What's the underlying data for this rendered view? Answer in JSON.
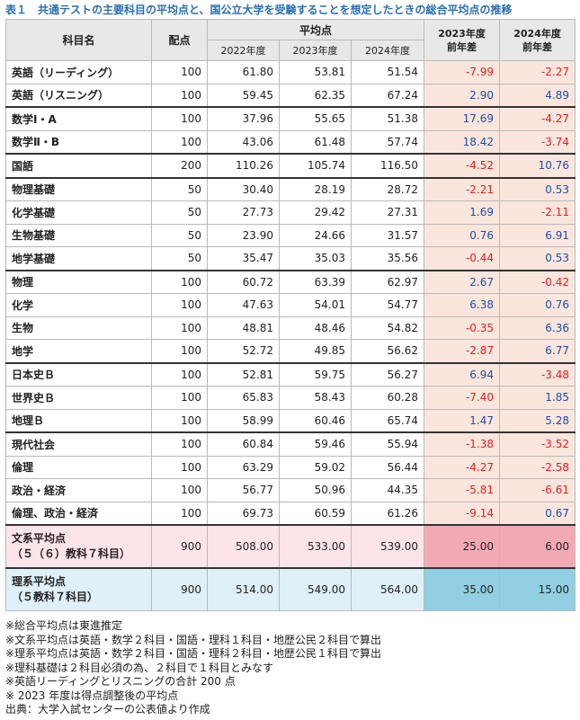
{
  "title": "表１　共通テストの主要科目の平均点と、国公立大学を受験することを想定したときの総合平均点の推移",
  "headers": {
    "subject": "科目名",
    "points": "配点",
    "avg": "平均点",
    "y2022": "2022年度",
    "y2023": "2023年度",
    "y2024": "2024年度",
    "d2023": "2023年度\n前年差",
    "d2024": "2024年度\n前年差"
  },
  "rows": [
    {
      "name": "英語（リーディング）",
      "points": "100",
      "v2022": "61.80",
      "v2023": "53.81",
      "v2024": "51.54",
      "d2023": "-7.99",
      "d2024": "-2.27"
    },
    {
      "name": "英語（リスニング）",
      "points": "100",
      "v2022": "59.45",
      "v2023": "62.35",
      "v2024": "67.24",
      "d2023": "2.90",
      "d2024": "4.89"
    },
    {
      "name": "数学Ⅰ・A",
      "points": "100",
      "v2022": "37.96",
      "v2023": "55.65",
      "v2024": "51.38",
      "d2023": "17.69",
      "d2024": "-4.27"
    },
    {
      "name": "数学Ⅱ・B",
      "points": "100",
      "v2022": "43.06",
      "v2023": "61.48",
      "v2024": "57.74",
      "d2023": "18.42",
      "d2024": "-3.74"
    },
    {
      "name": "国語",
      "points": "200",
      "v2022": "110.26",
      "v2023": "105.74",
      "v2024": "116.50",
      "d2023": "-4.52",
      "d2024": "10.76"
    },
    {
      "name": "物理基礎",
      "points": "50",
      "v2022": "30.40",
      "v2023": "28.19",
      "v2024": "28.72",
      "d2023": "-2.21",
      "d2024": "0.53"
    },
    {
      "name": "化学基礎",
      "points": "50",
      "v2022": "27.73",
      "v2023": "29.42",
      "v2024": "27.31",
      "d2023": "1.69",
      "d2024": "-2.11"
    },
    {
      "name": "生物基礎",
      "points": "50",
      "v2022": "23.90",
      "v2023": "24.66",
      "v2024": "31.57",
      "d2023": "0.76",
      "d2024": "6.91"
    },
    {
      "name": "地学基礎",
      "points": "50",
      "v2022": "35.47",
      "v2023": "35.03",
      "v2024": "35.56",
      "d2023": "-0.44",
      "d2024": "0.53"
    },
    {
      "name": "物理",
      "points": "100",
      "v2022": "60.72",
      "v2023": "63.39",
      "v2024": "62.97",
      "d2023": "2.67",
      "d2024": "-0.42"
    },
    {
      "name": "化学",
      "points": "100",
      "v2022": "47.63",
      "v2023": "54.01",
      "v2024": "54.77",
      "d2023": "6.38",
      "d2024": "0.76"
    },
    {
      "name": "生物",
      "points": "100",
      "v2022": "48.81",
      "v2023": "48.46",
      "v2024": "54.82",
      "d2023": "-0.35",
      "d2024": "6.36"
    },
    {
      "name": "地学",
      "points": "100",
      "v2022": "52.72",
      "v2023": "49.85",
      "v2024": "56.62",
      "d2023": "-2.87",
      "d2024": "6.77"
    },
    {
      "name": "日本史Ｂ",
      "points": "100",
      "v2022": "52.81",
      "v2023": "59.75",
      "v2024": "56.27",
      "d2023": "6.94",
      "d2024": "-3.48"
    },
    {
      "name": "世界史Ｂ",
      "points": "100",
      "v2022": "65.83",
      "v2023": "58.43",
      "v2024": "60.28",
      "d2023": "-7.40",
      "d2024": "1.85"
    },
    {
      "name": "地理Ｂ",
      "points": "100",
      "v2022": "58.99",
      "v2023": "60.46",
      "v2024": "65.74",
      "d2023": "1.47",
      "d2024": "5.28"
    },
    {
      "name": "現代社会",
      "points": "100",
      "v2022": "60.84",
      "v2023": "59.46",
      "v2024": "55.94",
      "d2023": "-1.38",
      "d2024": "-3.52"
    },
    {
      "name": "倫理",
      "points": "100",
      "v2022": "63.29",
      "v2023": "59.02",
      "v2024": "56.44",
      "d2023": "-4.27",
      "d2024": "-2.58"
    },
    {
      "name": "政治・経済",
      "points": "100",
      "v2022": "56.77",
      "v2023": "50.96",
      "v2024": "44.35",
      "d2023": "-5.81",
      "d2024": "-6.61"
    },
    {
      "name": "倫理、政治・経済",
      "points": "100",
      "v2022": "69.73",
      "v2023": "60.59",
      "v2024": "61.26",
      "d2023": "-9.14",
      "d2024": "0.67"
    }
  ],
  "bunkei": {
    "name1": "文系平均点",
    "name2": "（５（６）教科７科目）",
    "points": "900",
    "v2022": "508.00",
    "v2023": "533.00",
    "v2024": "539.00",
    "d2023": "25.00",
    "d2024": "6.00"
  },
  "rikei": {
    "name1": "理系平均点",
    "name2": "（５教科７科目）",
    "points": "900",
    "v2022": "514.00",
    "v2023": "549.00",
    "v2024": "564.00",
    "d2023": "35.00",
    "d2024": "15.00"
  },
  "notes": [
    "※総合平均点は東進推定",
    "※文系平均点は英語・数学２科目・国語・理科１科目・地歴公民２科目で算出",
    "※理系平均点は英語・数学２科目・国語・理科２科目・地歴公民１科目で算出",
    "※理科基礎は２科目必須の為、２科目で１科目とみなす",
    "※英語リーディングとリスニングの合計 200 点",
    "※ 2023 年度は得点調整後の平均点",
    "出典：大学入試センターの公表値より作成"
  ],
  "colors": {
    "negative": "#e02020",
    "positive": "#1f4ea8",
    "title": "#2a6fb0"
  }
}
